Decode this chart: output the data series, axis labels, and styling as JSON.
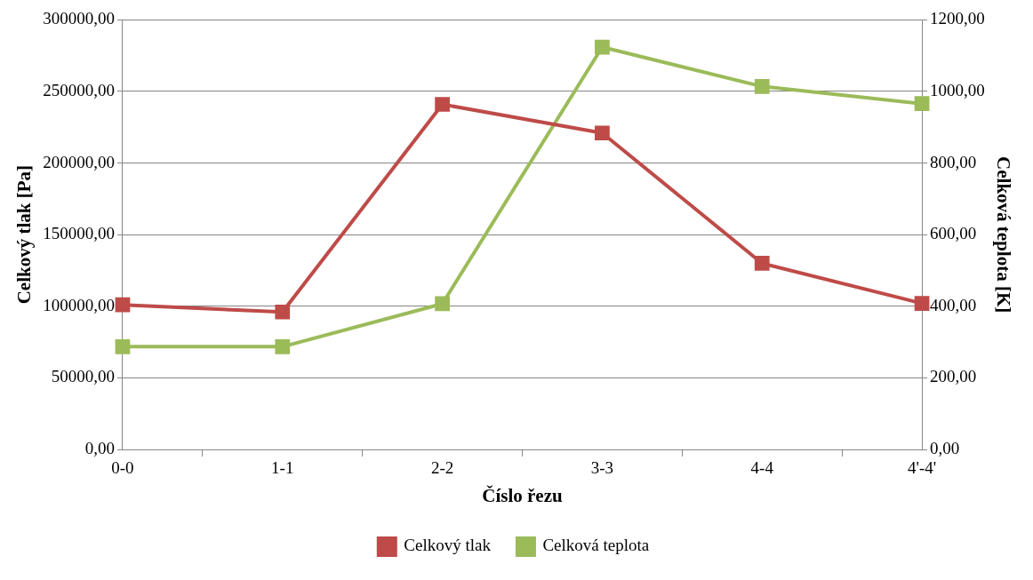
{
  "chart_data": {
    "type": "line",
    "xlabel": "Číslo řezu",
    "ylabel": "Celkový tlak [Pa]",
    "y2label": "Celková teplota [K]",
    "categories": [
      "0-0",
      "1-1",
      "2-2",
      "3-3",
      "4-4",
      "4'-4'"
    ],
    "series": [
      {
        "name": "Celkový tlak",
        "color": "#be4b48",
        "values": [
          101000,
          96000,
          241000,
          221000,
          130000,
          102000
        ]
      },
      {
        "name": "Celková teplota",
        "color": "#9bbb59",
        "axis": "y2",
        "values": [
          287,
          287,
          407,
          1124,
          1014,
          966
        ]
      }
    ],
    "ylim": [
      0,
      300000
    ],
    "yticks": [
      {
        "value": 0,
        "label": "0,00"
      },
      {
        "value": 50000,
        "label": "50000,00"
      },
      {
        "value": 100000,
        "label": "100000,00"
      },
      {
        "value": 150000,
        "label": "150000,00"
      },
      {
        "value": 200000,
        "label": "200000,00"
      },
      {
        "value": 250000,
        "label": "250000,00"
      },
      {
        "value": 300000,
        "label": "300000,00"
      }
    ],
    "y2lim": [
      0,
      1200
    ],
    "y2ticks": [
      {
        "value": 0,
        "label": "0,00"
      },
      {
        "value": 200,
        "label": "200,00"
      },
      {
        "value": 400,
        "label": "400,00"
      },
      {
        "value": 600,
        "label": "600,00"
      },
      {
        "value": 800,
        "label": "800,00"
      },
      {
        "value": 1000,
        "label": "1000,00"
      },
      {
        "value": 1200,
        "label": "1200,00"
      }
    ],
    "grid": "y",
    "legend": "bottom",
    "marker": "square",
    "line_style": "solid"
  }
}
